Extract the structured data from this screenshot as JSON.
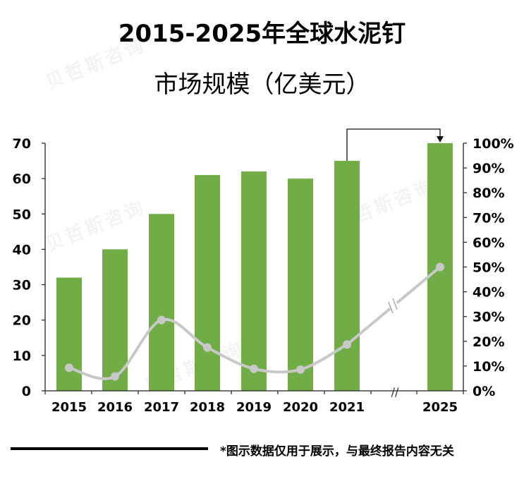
{
  "title_line1": "2015-2025年全球水泥钉",
  "title_line2": "市场规模（亿美元）",
  "footnote": "*图示数据仅用于展示，与最终报告内容无关",
  "watermark": "贝哲斯咨询",
  "chart_data": {
    "type": "bar",
    "categories": [
      "2015",
      "2016",
      "2017",
      "2018",
      "2019",
      "2020",
      "2021",
      "2025"
    ],
    "series": [
      {
        "values": [
          32,
          40,
          50,
          61,
          62,
          60,
          65,
          70
        ],
        "color": "#70ad47",
        "axis": "left"
      },
      {
        "type": "line",
        "values": [
          0.093,
          0.058,
          0.286,
          0.175,
          0.089,
          0.086,
          0.187,
          0.5
        ],
        "color": "#c8c8c8",
        "axis": "right"
      }
    ],
    "left_axis": {
      "min": 0,
      "max": 70,
      "ticks": [
        "0",
        "10",
        "20",
        "30",
        "40",
        "50",
        "60",
        "70"
      ]
    },
    "right_axis": {
      "min": 0,
      "max": 1,
      "ticks": [
        "0%",
        "10%",
        "20%",
        "30%",
        "40%",
        "50%",
        "60%",
        "70%",
        "80%",
        "90%",
        "100%"
      ]
    },
    "axis_break": "//",
    "grid": false,
    "legend": "none"
  }
}
